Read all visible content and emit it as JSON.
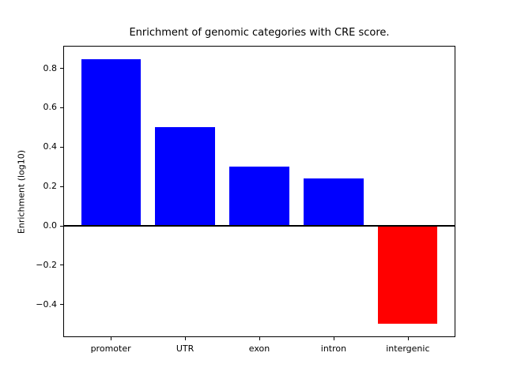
{
  "chart_data": {
    "type": "bar",
    "title": "Enrichment of genomic categories with CRE score.",
    "ylabel": "Enrichment (log10)",
    "xlabel": "",
    "categories": [
      "promoter",
      "UTR",
      "exon",
      "intron",
      "intergenic"
    ],
    "values": [
      0.845,
      0.5,
      0.3,
      0.24,
      -0.5
    ],
    "bar_colors": [
      "#0000ff",
      "#0000ff",
      "#0000ff",
      "#0000ff",
      "#ff0000"
    ],
    "ylim": [
      -0.5673,
      0.9123
    ],
    "yticks": [
      0.8,
      0.6,
      0.4,
      0.2,
      0.0,
      -0.2,
      -0.4
    ],
    "ytick_labels": [
      "0.8",
      "0.6",
      "0.4",
      "0.2",
      "0.0",
      "−0.2",
      "−0.4"
    ],
    "zero_line": true,
    "grid": false,
    "legend": null,
    "background": "#ffffff",
    "axis_color": "#000000"
  }
}
